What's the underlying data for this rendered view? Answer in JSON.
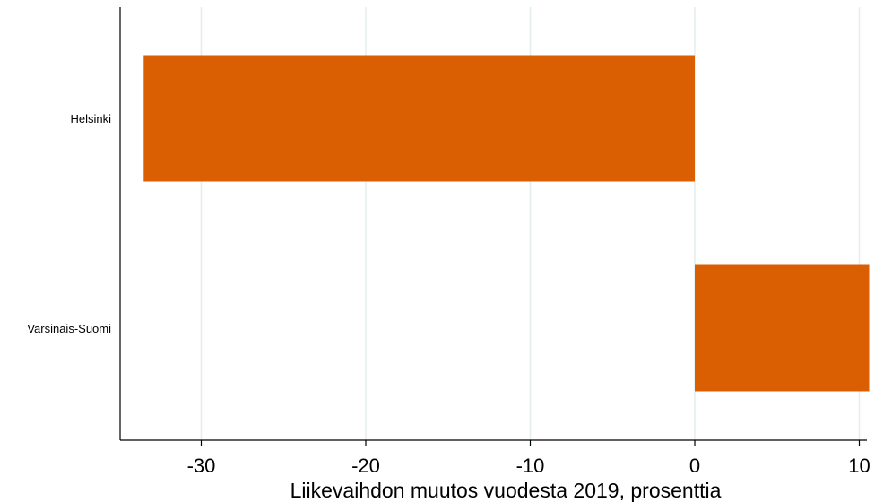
{
  "chart_data": {
    "type": "bar",
    "orientation": "horizontal",
    "categories": [
      "Helsinki",
      "Varsinais-Suomi"
    ],
    "values": [
      -33.5,
      10.6
    ],
    "xlabel": "Liikevaihdon muutos vuodesta 2019, prosenttia",
    "xlim": [
      -35,
      12
    ],
    "xticks": [
      -30,
      -20,
      -10,
      0,
      10
    ],
    "xtick_labels": [
      "-30",
      "-20",
      "-10",
      "0",
      "10"
    ],
    "grid": "vertical",
    "bar_color": "#d95f02",
    "grid_color": "#e4eeee"
  }
}
